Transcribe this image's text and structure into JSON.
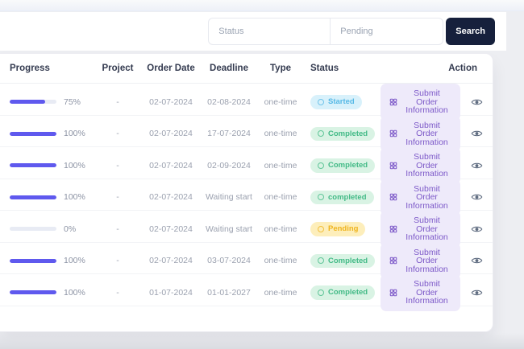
{
  "filters": {
    "status_placeholder": "Status",
    "keyword_value": "Pending",
    "search_label": "Search"
  },
  "table": {
    "columns": [
      "Progress",
      "Project",
      "Order Date",
      "Deadline",
      "Type",
      "Status",
      "Action"
    ],
    "action_button_label": "Submit Order Information",
    "rows": [
      {
        "progress": 75,
        "progress_label": "75%",
        "project": "-",
        "order_date": "02-07-2024",
        "deadline": "02-08-2024",
        "type": "one-time",
        "status": "Started",
        "status_kind": "started"
      },
      {
        "progress": 100,
        "progress_label": "100%",
        "project": "-",
        "order_date": "02-07-2024",
        "deadline": "17-07-2024",
        "type": "one-time",
        "status": "Completed",
        "status_kind": "completed"
      },
      {
        "progress": 100,
        "progress_label": "100%",
        "project": "-",
        "order_date": "02-07-2024",
        "deadline": "02-09-2024",
        "type": "one-time",
        "status": "Completed",
        "status_kind": "completed"
      },
      {
        "progress": 100,
        "progress_label": "100%",
        "project": "-",
        "order_date": "02-07-2024",
        "deadline": "Waiting start",
        "type": "one-time",
        "status": "completed",
        "status_kind": "completed"
      },
      {
        "progress": 0,
        "progress_label": "0%",
        "project": "-",
        "order_date": "02-07-2024",
        "deadline": "Waiting start",
        "type": "one-time",
        "status": "Pending",
        "status_kind": "pending"
      },
      {
        "progress": 100,
        "progress_label": "100%",
        "project": "-",
        "order_date": "02-07-2024",
        "deadline": "03-07-2024",
        "type": "one-time",
        "status": "Completed",
        "status_kind": "completed"
      },
      {
        "progress": 100,
        "progress_label": "100%",
        "project": "-",
        "order_date": "01-07-2024",
        "deadline": "01-01-2027",
        "type": "one-time",
        "status": "Completed",
        "status_kind": "completed"
      }
    ]
  },
  "colors": {
    "accent_progress": "#5f59ee",
    "search_button_bg": "#16203c",
    "submit_button_bg": "#eeeafa",
    "submit_button_text": "#7c58c8",
    "badge_started_bg": "#d8f1fb",
    "badge_started_text": "#57b9e6",
    "badge_completed_bg": "#d9f3e4",
    "badge_completed_text": "#42ba86",
    "badge_pending_bg": "#fdeebb",
    "badge_pending_text": "#efb41e"
  }
}
